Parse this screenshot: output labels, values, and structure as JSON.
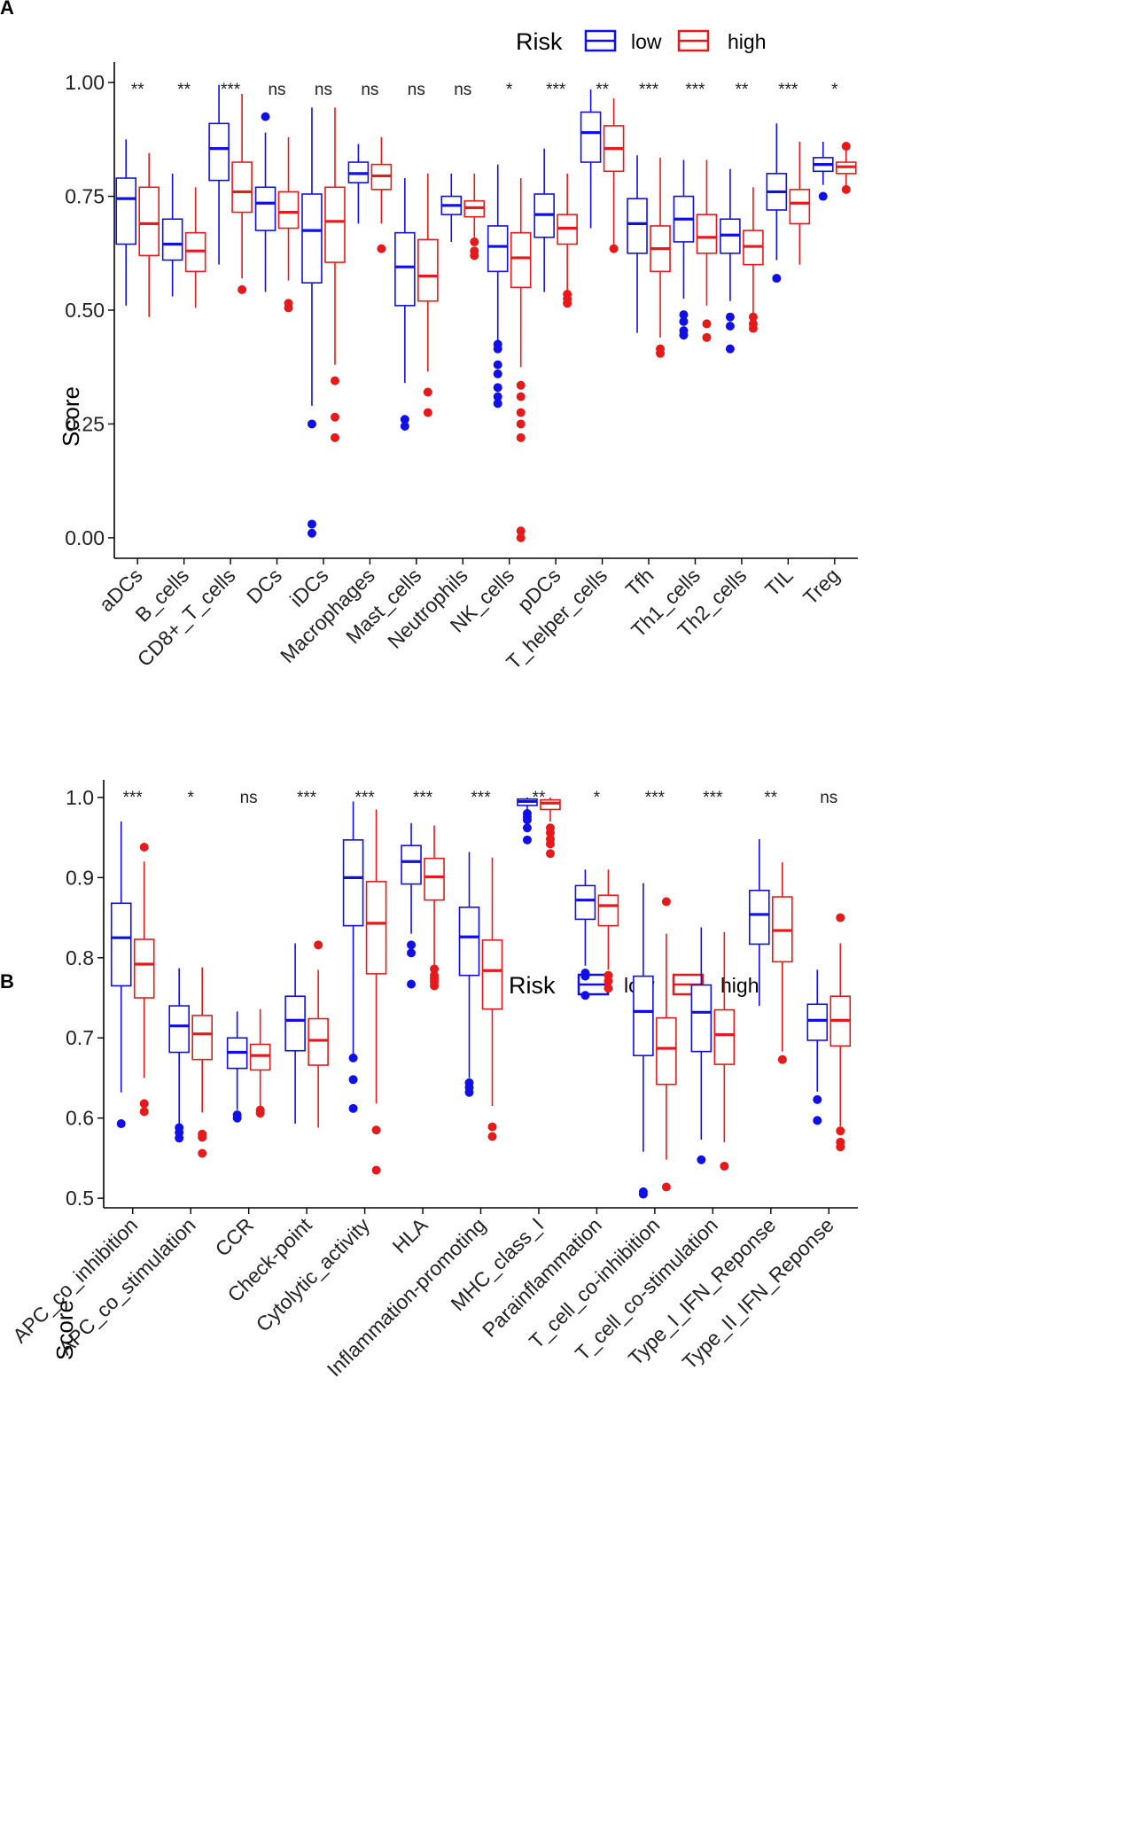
{
  "colors": {
    "low": "#1010E6",
    "high": "#E61A1A",
    "axis": "#000000"
  },
  "chart_data": [
    {
      "panel_label": "A",
      "type": "boxplot",
      "legend": {
        "title": "Risk",
        "entries": [
          "low",
          "high"
        ],
        "placement": "top-center"
      },
      "ylabel": "Score",
      "ylim": [
        -0.045,
        1.045
      ],
      "yticks": [
        0.0,
        0.25,
        0.5,
        0.75,
        1.0
      ],
      "ytick_labels": [
        "0.00",
        "0.25",
        "0.50",
        "0.75",
        "1.00"
      ],
      "categories": [
        "aDCs",
        "B_cells",
        "CD8+_T_cells",
        "DCs",
        "iDCs",
        "Macrophages",
        "Mast_cells",
        "Neutrophils",
        "NK_cells",
        "pDCs",
        "T_helper_cells",
        "Tfh",
        "Th1_cells",
        "Th2_cells",
        "TIL",
        "Treg"
      ],
      "significance": [
        "**",
        "**",
        "***",
        "ns",
        "ns",
        "ns",
        "ns",
        "ns",
        "*",
        "***",
        "**",
        "***",
        "***",
        "**",
        "***",
        "*"
      ],
      "groups": {
        "low": [
          {
            "min": 0.51,
            "q1": 0.645,
            "median": 0.745,
            "q3": 0.79,
            "max": 0.875,
            "outliers": []
          },
          {
            "min": 0.53,
            "q1": 0.61,
            "median": 0.645,
            "q3": 0.7,
            "max": 0.8,
            "outliers": []
          },
          {
            "min": 0.6,
            "q1": 0.785,
            "median": 0.855,
            "q3": 0.91,
            "max": 0.995,
            "outliers": []
          },
          {
            "min": 0.54,
            "q1": 0.675,
            "median": 0.735,
            "q3": 0.77,
            "max": 0.89,
            "outliers": [
              0.925
            ]
          },
          {
            "min": 0.29,
            "q1": 0.56,
            "median": 0.675,
            "q3": 0.755,
            "max": 0.945,
            "outliers": [
              0.25,
              0.03,
              0.01
            ]
          },
          {
            "min": 0.69,
            "q1": 0.78,
            "median": 0.8,
            "q3": 0.825,
            "max": 0.865,
            "outliers": []
          },
          {
            "min": 0.34,
            "q1": 0.51,
            "median": 0.595,
            "q3": 0.67,
            "max": 0.79,
            "outliers": [
              0.26,
              0.245
            ]
          },
          {
            "min": 0.65,
            "q1": 0.71,
            "median": 0.73,
            "q3": 0.75,
            "max": 0.8,
            "outliers": []
          },
          {
            "min": 0.43,
            "q1": 0.585,
            "median": 0.64,
            "q3": 0.685,
            "max": 0.82,
            "outliers": [
              0.425,
              0.415,
              0.38,
              0.36,
              0.33,
              0.31,
              0.295
            ]
          },
          {
            "min": 0.54,
            "q1": 0.66,
            "median": 0.71,
            "q3": 0.755,
            "max": 0.855,
            "outliers": []
          },
          {
            "min": 0.68,
            "q1": 0.825,
            "median": 0.89,
            "q3": 0.935,
            "max": 0.985,
            "outliers": []
          },
          {
            "min": 0.45,
            "q1": 0.625,
            "median": 0.69,
            "q3": 0.745,
            "max": 0.84,
            "outliers": []
          },
          {
            "min": 0.525,
            "q1": 0.65,
            "median": 0.7,
            "q3": 0.75,
            "max": 0.83,
            "outliers": [
              0.49,
              0.475,
              0.455,
              0.445
            ]
          },
          {
            "min": 0.52,
            "q1": 0.625,
            "median": 0.665,
            "q3": 0.7,
            "max": 0.81,
            "outliers": [
              0.485,
              0.465,
              0.415
            ]
          },
          {
            "min": 0.61,
            "q1": 0.72,
            "median": 0.76,
            "q3": 0.8,
            "max": 0.91,
            "outliers": [
              0.57
            ]
          },
          {
            "min": 0.775,
            "q1": 0.805,
            "median": 0.82,
            "q3": 0.835,
            "max": 0.87,
            "outliers": [
              0.75
            ]
          }
        ],
        "high": [
          {
            "min": 0.485,
            "q1": 0.62,
            "median": 0.69,
            "q3": 0.77,
            "max": 0.845,
            "outliers": []
          },
          {
            "min": 0.505,
            "q1": 0.585,
            "median": 0.63,
            "q3": 0.67,
            "max": 0.77,
            "outliers": []
          },
          {
            "min": 0.57,
            "q1": 0.715,
            "median": 0.76,
            "q3": 0.825,
            "max": 0.975,
            "outliers": [
              0.545
            ]
          },
          {
            "min": 0.565,
            "q1": 0.68,
            "median": 0.715,
            "q3": 0.76,
            "max": 0.88,
            "outliers": [
              0.515,
              0.505
            ]
          },
          {
            "min": 0.38,
            "q1": 0.605,
            "median": 0.695,
            "q3": 0.77,
            "max": 0.945,
            "outliers": [
              0.345,
              0.265,
              0.22
            ]
          },
          {
            "min": 0.69,
            "q1": 0.765,
            "median": 0.795,
            "q3": 0.82,
            "max": 0.88,
            "outliers": [
              0.635
            ]
          },
          {
            "min": 0.365,
            "q1": 0.52,
            "median": 0.575,
            "q3": 0.655,
            "max": 0.8,
            "outliers": [
              0.32,
              0.275
            ]
          },
          {
            "min": 0.66,
            "q1": 0.705,
            "median": 0.725,
            "q3": 0.74,
            "max": 0.8,
            "outliers": [
              0.65,
              0.63,
              0.62
            ]
          },
          {
            "min": 0.375,
            "q1": 0.55,
            "median": 0.615,
            "q3": 0.67,
            "max": 0.79,
            "outliers": [
              0.335,
              0.31,
              0.275,
              0.25,
              0.22,
              0.015,
              0.0
            ]
          },
          {
            "min": 0.54,
            "q1": 0.645,
            "median": 0.68,
            "q3": 0.71,
            "max": 0.8,
            "outliers": [
              0.535,
              0.525,
              0.515
            ]
          },
          {
            "min": 0.645,
            "q1": 0.805,
            "median": 0.855,
            "q3": 0.905,
            "max": 0.965,
            "outliers": [
              0.635
            ]
          },
          {
            "min": 0.44,
            "q1": 0.585,
            "median": 0.635,
            "q3": 0.685,
            "max": 0.835,
            "outliers": [
              0.415,
              0.405
            ]
          },
          {
            "min": 0.51,
            "q1": 0.625,
            "median": 0.66,
            "q3": 0.71,
            "max": 0.83,
            "outliers": [
              0.47,
              0.44
            ]
          },
          {
            "min": 0.49,
            "q1": 0.6,
            "median": 0.64,
            "q3": 0.675,
            "max": 0.77,
            "outliers": [
              0.485,
              0.47,
              0.46
            ]
          },
          {
            "min": 0.6,
            "q1": 0.69,
            "median": 0.735,
            "q3": 0.765,
            "max": 0.87,
            "outliers": []
          },
          {
            "min": 0.77,
            "q1": 0.8,
            "median": 0.815,
            "q3": 0.825,
            "max": 0.855,
            "outliers": [
              0.86,
              0.765
            ]
          }
        ]
      }
    },
    {
      "panel_label": "B",
      "type": "boxplot",
      "legend": {
        "title": "Risk",
        "entries": [
          "low",
          "high"
        ],
        "placement": "top-center"
      },
      "ylabel": "Score",
      "ylim": [
        0.488,
        1.022
      ],
      "yticks": [
        0.5,
        0.6,
        0.7,
        0.8,
        0.9,
        1.0
      ],
      "ytick_labels": [
        "0.5",
        "0.6",
        "0.7",
        "0.8",
        "0.9",
        "1.0"
      ],
      "categories": [
        "APC_co_inhibition",
        "APC_co_stimulation",
        "CCR",
        "Check-point",
        "Cytolytic_activity",
        "HLA",
        "Inflammation-promoting",
        "MHC_class_I",
        "Parainflammation",
        "T_cell_co-inhibition",
        "T_cell_co-stimulation",
        "Type_I_IFN_Reponse",
        "Type_II_IFN_Reponse"
      ],
      "significance": [
        "***",
        "*",
        "ns",
        "***",
        "***",
        "***",
        "***",
        "**",
        "*",
        "***",
        "***",
        "**",
        "ns"
      ],
      "groups": {
        "low": [
          {
            "min": 0.632,
            "q1": 0.765,
            "median": 0.825,
            "q3": 0.868,
            "max": 0.97,
            "outliers": [
              0.593
            ]
          },
          {
            "min": 0.59,
            "q1": 0.682,
            "median": 0.715,
            "q3": 0.74,
            "max": 0.787,
            "outliers": [
              0.588,
              0.582,
              0.575
            ]
          },
          {
            "min": 0.61,
            "q1": 0.662,
            "median": 0.682,
            "q3": 0.7,
            "max": 0.733,
            "outliers": [
              0.604,
              0.6
            ]
          },
          {
            "min": 0.593,
            "q1": 0.684,
            "median": 0.722,
            "q3": 0.752,
            "max": 0.818,
            "outliers": []
          },
          {
            "min": 0.68,
            "q1": 0.84,
            "median": 0.9,
            "q3": 0.947,
            "max": 0.995,
            "outliers": [
              0.675,
              0.648,
              0.612
            ]
          },
          {
            "min": 0.83,
            "q1": 0.892,
            "median": 0.92,
            "q3": 0.94,
            "max": 0.968,
            "outliers": [
              0.816,
              0.806,
              0.767
            ]
          },
          {
            "min": 0.65,
            "q1": 0.778,
            "median": 0.826,
            "q3": 0.863,
            "max": 0.932,
            "outliers": [
              0.644,
              0.638,
              0.632
            ]
          },
          {
            "min": 0.984,
            "q1": 0.99,
            "median": 0.995,
            "q3": 0.998,
            "max": 1.0,
            "outliers": [
              0.98,
              0.976,
              0.972,
              0.962,
              0.947
            ]
          },
          {
            "min": 0.79,
            "q1": 0.848,
            "median": 0.872,
            "q3": 0.89,
            "max": 0.91,
            "outliers": [
              0.781,
              0.777,
              0.753
            ]
          },
          {
            "min": 0.558,
            "q1": 0.678,
            "median": 0.733,
            "q3": 0.777,
            "max": 0.893,
            "outliers": [
              0.508,
              0.505
            ]
          },
          {
            "min": 0.573,
            "q1": 0.683,
            "median": 0.732,
            "q3": 0.766,
            "max": 0.838,
            "outliers": [
              0.548
            ]
          },
          {
            "min": 0.74,
            "q1": 0.817,
            "median": 0.854,
            "q3": 0.884,
            "max": 0.948,
            "outliers": []
          },
          {
            "min": 0.633,
            "q1": 0.697,
            "median": 0.722,
            "q3": 0.742,
            "max": 0.785,
            "outliers": [
              0.623,
              0.597
            ]
          }
        ],
        "high": [
          {
            "min": 0.65,
            "q1": 0.75,
            "median": 0.792,
            "q3": 0.823,
            "max": 0.92,
            "outliers": [
              0.938,
              0.618,
              0.608
            ]
          },
          {
            "min": 0.607,
            "q1": 0.673,
            "median": 0.705,
            "q3": 0.728,
            "max": 0.788,
            "outliers": [
              0.58,
              0.576,
              0.556
            ]
          },
          {
            "min": 0.614,
            "q1": 0.66,
            "median": 0.678,
            "q3": 0.692,
            "max": 0.736,
            "outliers": [
              0.61,
              0.606
            ]
          },
          {
            "min": 0.588,
            "q1": 0.666,
            "median": 0.697,
            "q3": 0.724,
            "max": 0.785,
            "outliers": [
              0.816
            ]
          },
          {
            "min": 0.618,
            "q1": 0.78,
            "median": 0.843,
            "q3": 0.895,
            "max": 0.985,
            "outliers": [
              0.585,
              0.535
            ]
          },
          {
            "min": 0.79,
            "q1": 0.872,
            "median": 0.901,
            "q3": 0.924,
            "max": 0.965,
            "outliers": [
              0.786,
              0.778,
              0.774,
              0.77,
              0.765
            ]
          },
          {
            "min": 0.615,
            "q1": 0.736,
            "median": 0.784,
            "q3": 0.822,
            "max": 0.925,
            "outliers": [
              0.589,
              0.577
            ]
          },
          {
            "min": 0.97,
            "q1": 0.985,
            "median": 0.993,
            "q3": 0.997,
            "max": 1.0,
            "outliers": [
              0.962,
              0.956,
              0.948,
              0.942,
              0.93
            ]
          },
          {
            "min": 0.785,
            "q1": 0.84,
            "median": 0.865,
            "q3": 0.878,
            "max": 0.91,
            "outliers": [
              0.778,
              0.771,
              0.762
            ]
          },
          {
            "min": 0.548,
            "q1": 0.642,
            "median": 0.687,
            "q3": 0.725,
            "max": 0.83,
            "outliers": [
              0.87,
              0.514
            ]
          },
          {
            "min": 0.57,
            "q1": 0.667,
            "median": 0.704,
            "q3": 0.735,
            "max": 0.832,
            "outliers": [
              0.54
            ]
          },
          {
            "min": 0.683,
            "q1": 0.795,
            "median": 0.834,
            "q3": 0.876,
            "max": 0.919,
            "outliers": [
              0.673
            ]
          },
          {
            "min": 0.59,
            "q1": 0.69,
            "median": 0.722,
            "q3": 0.752,
            "max": 0.818,
            "outliers": [
              0.85,
              0.584,
              0.57,
              0.564
            ]
          }
        ]
      }
    }
  ]
}
